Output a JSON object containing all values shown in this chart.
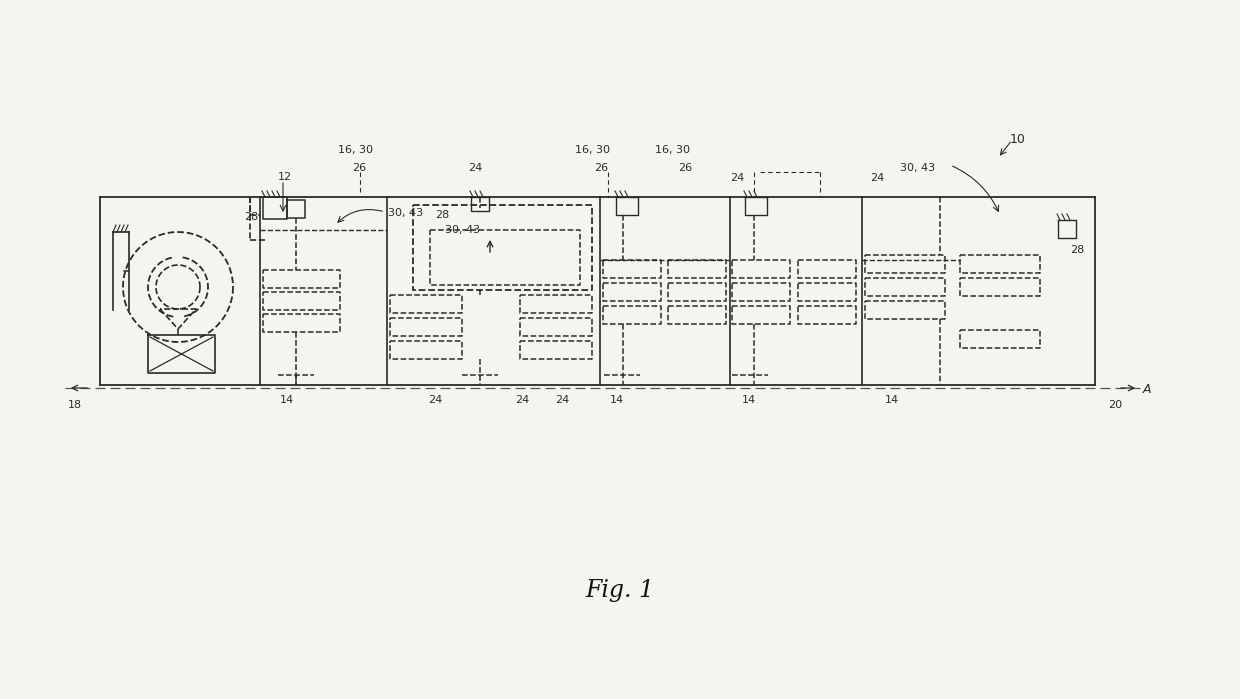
{
  "bg_color": "#f5f5f0",
  "line_color": "#2a2a2a",
  "fig_width": 12.4,
  "fig_height": 6.99,
  "fig1_label": "Fig. 1"
}
